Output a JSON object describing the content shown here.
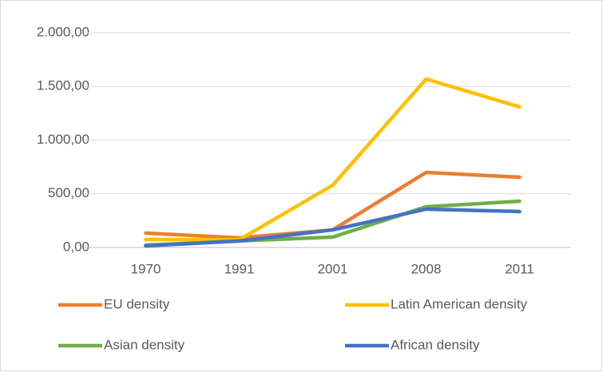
{
  "chart_data": {
    "type": "line",
    "categories": [
      "1970",
      "1991",
      "2001",
      "2008",
      "2011"
    ],
    "series": [
      {
        "name": "EU density",
        "color": "#ed7d31",
        "values": [
          134,
          89,
          164,
          699,
          654
        ]
      },
      {
        "name": "Latin American density",
        "color": "#ffc000",
        "values": [
          74,
          72,
          580,
          1569,
          1309
        ]
      },
      {
        "name": "Asian density",
        "color": "#70ad47",
        "values": [
          22,
          60,
          97,
          379,
          431
        ]
      },
      {
        "name": "African density",
        "color": "#4472c4",
        "values": [
          15,
          60,
          164,
          357,
          335
        ]
      }
    ],
    "ylim": [
      0,
      2000
    ],
    "yticks": [
      {
        "value": 0,
        "label": "0,00"
      },
      {
        "value": 500,
        "label": "500,00"
      },
      {
        "value": 1000,
        "label": "1.000,00"
      },
      {
        "value": 1500,
        "label": "1.500,00"
      },
      {
        "value": 2000,
        "label": "2.000,00"
      }
    ],
    "grid": true,
    "legend": "bottom"
  }
}
